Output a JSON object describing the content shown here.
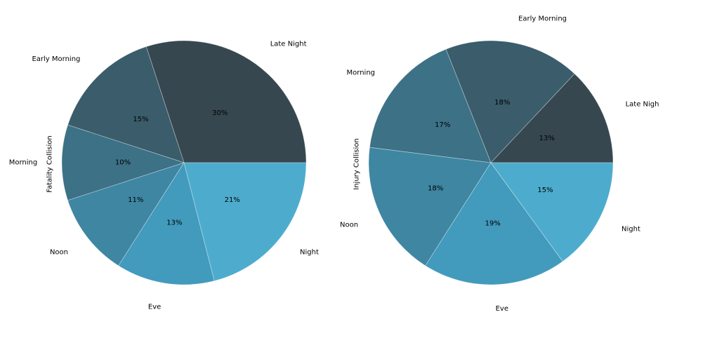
{
  "figure": {
    "background": "#ffffff",
    "text_color": "#000000"
  },
  "chart_data": [
    {
      "type": "pie",
      "ylabel": "Fatality Collision",
      "labels": [
        "Late Night",
        "Early Morning",
        "Morning",
        "Noon",
        "Eve",
        "Night"
      ],
      "values": [
        30,
        15,
        10,
        11,
        13,
        21
      ],
      "pct_labels": [
        "30%",
        "15%",
        "10%",
        "11%",
        "13%",
        "21%"
      ],
      "colors": [
        "#36474f",
        "#3a5c6b",
        "#3c7186",
        "#3e86a2",
        "#429abc",
        "#4daccd"
      ],
      "start_angle": 0,
      "direction": "counterclockwise",
      "legend": "none",
      "grid": "off"
    },
    {
      "type": "pie",
      "ylabel": "Injury Collision",
      "labels": [
        "Late Nigh",
        "Early Morning",
        "Morning",
        "Noon",
        "Eve",
        "Night"
      ],
      "values": [
        13,
        18,
        17,
        18,
        19,
        15
      ],
      "pct_labels": [
        "13%",
        "18%",
        "17%",
        "18%",
        "19%",
        "15%"
      ],
      "colors": [
        "#36474f",
        "#3a5c6b",
        "#3c7186",
        "#3e86a2",
        "#429abc",
        "#4daccd"
      ],
      "start_angle": 0,
      "direction": "counterclockwise",
      "legend": "none",
      "grid": "off"
    }
  ]
}
